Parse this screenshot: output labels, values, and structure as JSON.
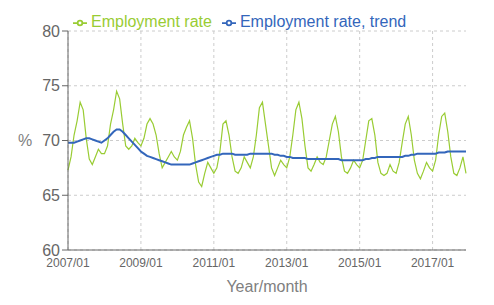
{
  "chart_data": {
    "type": "line",
    "xlabel": "Year/month",
    "ylabel": "%",
    "categories": [
      "2007/01",
      null,
      null,
      null,
      null,
      null,
      null,
      null,
      null,
      null,
      null,
      null,
      null,
      null,
      null,
      null,
      null,
      null,
      null,
      null,
      null,
      null,
      null,
      null,
      "2009/01",
      null,
      null,
      null,
      null,
      null,
      null,
      null,
      null,
      null,
      null,
      null,
      null,
      null,
      null,
      null,
      null,
      null,
      null,
      null,
      null,
      null,
      null,
      null,
      "2011/01",
      null,
      null,
      null,
      null,
      null,
      null,
      null,
      null,
      null,
      null,
      null,
      null,
      null,
      null,
      null,
      null,
      null,
      null,
      null,
      null,
      null,
      null,
      null,
      "2013/01",
      null,
      null,
      null,
      null,
      null,
      null,
      null,
      null,
      null,
      null,
      null,
      null,
      null,
      null,
      null,
      null,
      null,
      null,
      null,
      null,
      null,
      null,
      null,
      "2015/01",
      null,
      null,
      null,
      null,
      null,
      null,
      null,
      null,
      null,
      null,
      null,
      null,
      null,
      null,
      null,
      null,
      null,
      null,
      null,
      null,
      null,
      null,
      null,
      "2017/01",
      null,
      null,
      null,
      null,
      null,
      null,
      null,
      null,
      null,
      null,
      null
    ],
    "series": [
      {
        "name": "Employment rate",
        "color": "#99cc33",
        "values": [
          67.3,
          68.5,
          70.5,
          71.8,
          73.5,
          72.8,
          70.2,
          68.3,
          67.8,
          68.5,
          69.2,
          68.8,
          68.8,
          69.5,
          71.5,
          72.8,
          74.5,
          73.8,
          71.5,
          69.5,
          69.2,
          69.5,
          70.2,
          69.8,
          69.5,
          70.2,
          71.5,
          72.0,
          71.5,
          70.5,
          68.8,
          67.5,
          68.0,
          68.5,
          69.0,
          68.5,
          68.2,
          69.0,
          70.5,
          71.2,
          71.8,
          70.2,
          67.8,
          66.2,
          65.8,
          67.0,
          68.0,
          67.5,
          67.0,
          67.5,
          69.0,
          71.5,
          71.8,
          70.5,
          68.5,
          67.2,
          67.0,
          67.5,
          68.5,
          68.0,
          67.5,
          68.5,
          70.5,
          73.0,
          73.5,
          71.5,
          69.5,
          67.5,
          66.8,
          67.5,
          68.2,
          67.8,
          67.5,
          68.5,
          70.5,
          72.8,
          73.5,
          72.0,
          69.5,
          67.5,
          67.2,
          67.8,
          68.5,
          68.0,
          67.8,
          68.5,
          70.0,
          71.5,
          72.2,
          70.8,
          68.5,
          67.2,
          67.0,
          67.5,
          68.2,
          67.8,
          67.5,
          68.2,
          70.0,
          71.8,
          72.0,
          70.5,
          68.0,
          67.0,
          66.8,
          67.0,
          67.8,
          67.2,
          67.0,
          68.0,
          69.8,
          71.5,
          72.2,
          70.5,
          68.2,
          67.0,
          66.5,
          67.2,
          68.0,
          67.5,
          67.2,
          68.2,
          70.5,
          72.2,
          72.5,
          70.8,
          68.5,
          67.0,
          66.8,
          67.5,
          68.5,
          67.0
        ]
      },
      {
        "name": "Employment rate, trend",
        "color": "#3366bb",
        "values": [
          69.8,
          69.8,
          69.8,
          69.9,
          70.0,
          70.1,
          70.2,
          70.2,
          70.1,
          70.0,
          69.9,
          69.8,
          70.0,
          70.2,
          70.5,
          70.8,
          71.0,
          71.0,
          70.8,
          70.5,
          70.2,
          69.9,
          69.6,
          69.3,
          69.0,
          68.8,
          68.6,
          68.5,
          68.4,
          68.3,
          68.2,
          68.1,
          68.0,
          67.9,
          67.8,
          67.8,
          67.8,
          67.8,
          67.8,
          67.8,
          67.8,
          67.9,
          68.0,
          68.1,
          68.2,
          68.3,
          68.4,
          68.5,
          68.6,
          68.7,
          68.7,
          68.8,
          68.8,
          68.8,
          68.8,
          68.7,
          68.7,
          68.7,
          68.7,
          68.7,
          68.8,
          68.8,
          68.8,
          68.8,
          68.8,
          68.8,
          68.8,
          68.8,
          68.7,
          68.7,
          68.6,
          68.6,
          68.5,
          68.5,
          68.4,
          68.4,
          68.4,
          68.4,
          68.4,
          68.3,
          68.3,
          68.3,
          68.3,
          68.3,
          68.3,
          68.3,
          68.3,
          68.3,
          68.3,
          68.3,
          68.2,
          68.2,
          68.2,
          68.2,
          68.2,
          68.2,
          68.2,
          68.2,
          68.3,
          68.3,
          68.4,
          68.4,
          68.5,
          68.5,
          68.5,
          68.5,
          68.5,
          68.5,
          68.5,
          68.5,
          68.5,
          68.6,
          68.6,
          68.7,
          68.7,
          68.8,
          68.8,
          68.8,
          68.8,
          68.8,
          68.8,
          68.8,
          68.9,
          68.9,
          68.9,
          69.0,
          69.0,
          69.0,
          69.0,
          69.0,
          69.0,
          69.0
        ]
      }
    ],
    "ylim": [
      60,
      80
    ],
    "yticks": [
      60,
      65,
      70,
      75,
      80
    ],
    "grid": true,
    "legend": "top"
  }
}
